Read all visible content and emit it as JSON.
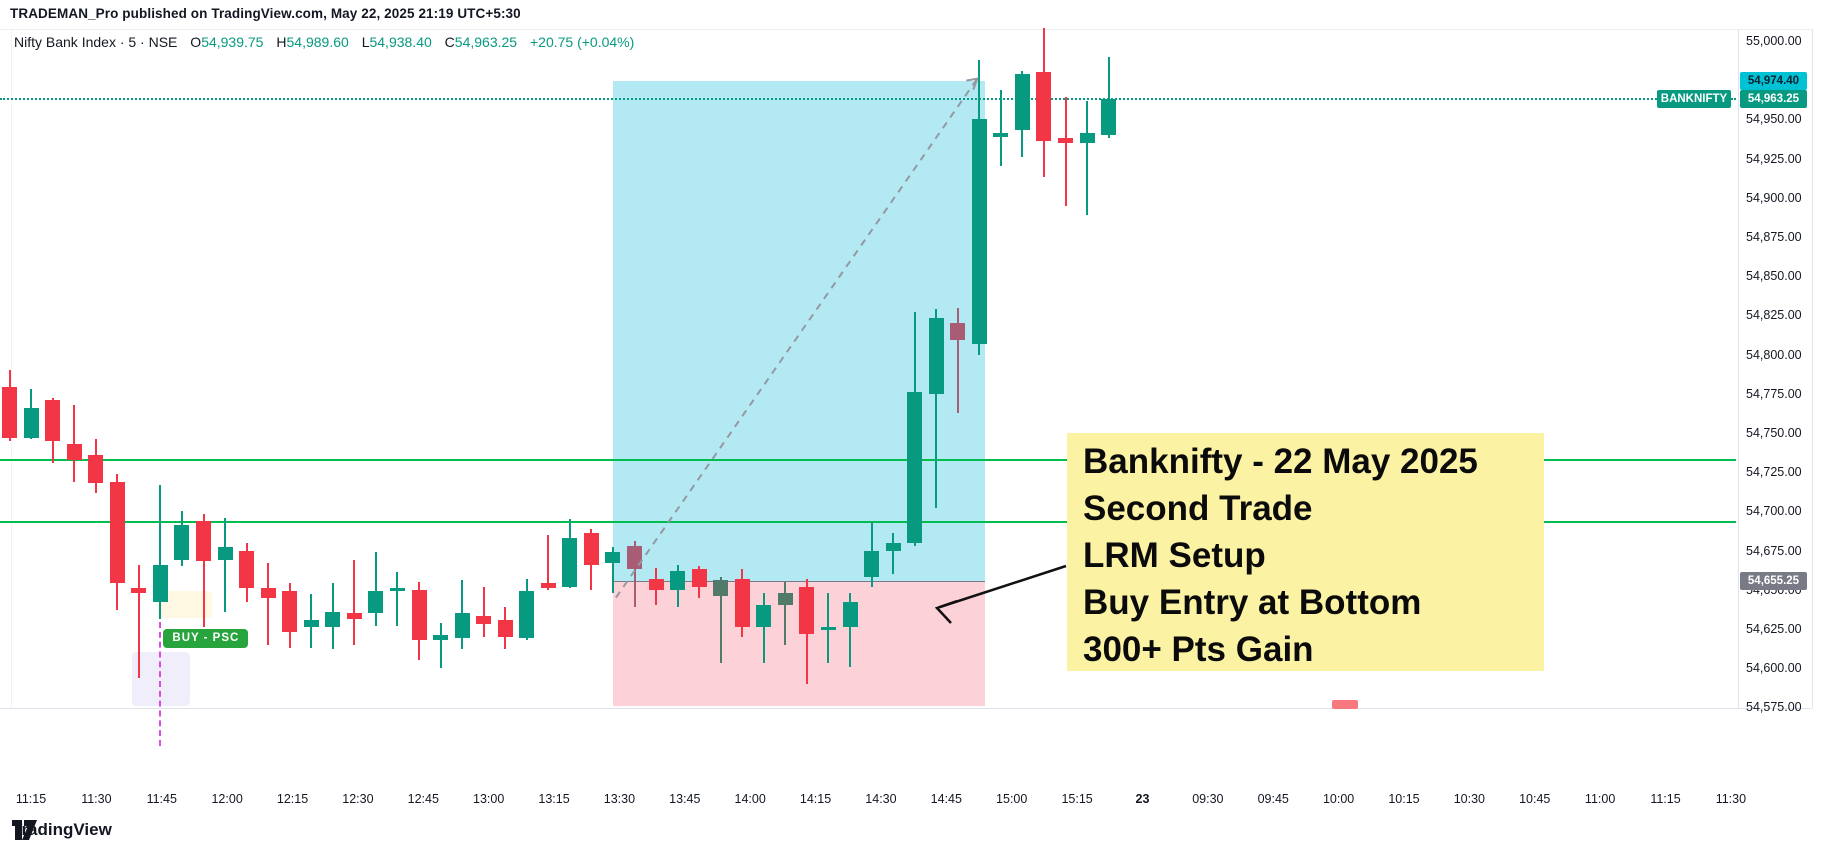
{
  "header": {
    "byline": "TRADEMAN_Pro published on TradingView.com, May 22, 2025 21:19 UTC+5:30"
  },
  "legend": {
    "symbol_line": "Nifty Bank Index · 5 · NSE",
    "o_label": "O",
    "o_value": "54,939.75",
    "h_label": "H",
    "h_value": "54,989.60",
    "l_label": "L",
    "l_value": "54,938.40",
    "c_label": "C",
    "c_value": "54,963.25",
    "change": "+20.75 (+0.04%)"
  },
  "note": {
    "lines": [
      "Banknifty - 22 May 2025",
      "Second Trade",
      "LRM Setup",
      "Buy Entry at Bottom",
      "300+ Pts Gain"
    ],
    "bg_color": "#fbf3a3"
  },
  "signal": {
    "buy_label": "BUY - PSC",
    "badge_color": "#27a43c"
  },
  "price_scale": {
    "symbol_tag": "BANKNIFTY",
    "last_price_tag": "54,963.25",
    "target_tag": "54,974.40",
    "entry_tag": "54,655.25",
    "last_color": "#089981",
    "target_color": "#00c2d4",
    "entry_color": "#787b86"
  },
  "footer": {
    "brand": "TradingView"
  },
  "chart_data": {
    "type": "candlestick",
    "title": "Nifty Bank Index · 5 · NSE",
    "interval_minutes": 5,
    "last_bar": {
      "open": 54939.75,
      "high": 54989.6,
      "low": 54938.4,
      "close": 54963.25,
      "change": 20.75,
      "change_pct": 0.04
    },
    "y_axis": {
      "min": 54575,
      "max": 55000,
      "tick_step": 25,
      "grid": false
    },
    "x_labels": [
      "11:15",
      "11:30",
      "11:45",
      "12:00",
      "12:15",
      "12:30",
      "12:45",
      "13:00",
      "13:15",
      "13:30",
      "13:45",
      "14:00",
      "14:15",
      "14:30",
      "14:45",
      "15:00",
      "15:15",
      "23",
      "09:30",
      "09:45",
      "10:00",
      "10:15",
      "10:30",
      "10:45",
      "11:00",
      "11:15",
      "11:30"
    ],
    "levels": {
      "current_price": 54963.25,
      "target": 54974.4,
      "entry": 54655.25,
      "horizontal_lines": [
        54733,
        54693
      ],
      "line_color": "#00bd4e"
    },
    "zones": {
      "profit": {
        "price_from": 54655.25,
        "price_to": 54974.4,
        "time_from": "13:30",
        "time_to": "14:55",
        "color": "rgba(0,183,212,0.30)"
      },
      "risk": {
        "price_from": 54576,
        "price_to": 54655.25,
        "time_from": "13:30",
        "time_to": "14:55",
        "color": "rgba(244,67,92,0.24)"
      }
    },
    "trendline": {
      "from": {
        "time": "13:30",
        "price": 54645
      },
      "to": {
        "time": "14:55",
        "price": 54976
      },
      "style": "dashed",
      "color": "#9598a1"
    },
    "buy_signal": {
      "time": "11:45",
      "price": 54631
    },
    "candles": [
      [
        "11:05",
        54785,
        54792,
        54750,
        54752,
        "r"
      ],
      [
        "11:10",
        54779,
        54790,
        54745,
        54747,
        "r"
      ],
      [
        "11:15",
        54747,
        54778,
        54746,
        54766,
        "g"
      ],
      [
        "11:20",
        54771,
        54772,
        54731,
        54745,
        "r"
      ],
      [
        "11:25",
        54743,
        54768,
        54719,
        54733,
        "r"
      ],
      [
        "11:30",
        54736,
        54746,
        54712,
        54718,
        "r"
      ],
      [
        "11:35",
        54719,
        54724,
        54637,
        54654,
        "r"
      ],
      [
        "11:40",
        54651,
        54666,
        54594,
        54648,
        "r"
      ],
      [
        "11:45",
        54642,
        54717,
        54631,
        54666,
        "g"
      ],
      [
        "11:50",
        54669,
        54700,
        54665,
        54691,
        "g"
      ],
      [
        "11:55",
        54694,
        54698,
        54626,
        54668,
        "r"
      ],
      [
        "12:00",
        54669,
        54696,
        54636,
        54677,
        "g"
      ],
      [
        "12:05",
        54675,
        54680,
        54642,
        54651,
        "r"
      ],
      [
        "12:10",
        54651,
        54667,
        54615,
        54645,
        "r"
      ],
      [
        "12:15",
        54649,
        54654,
        54613,
        54623,
        "r"
      ],
      [
        "12:20",
        54626,
        54647,
        54613,
        54631,
        "g"
      ],
      [
        "12:25",
        54626,
        54654,
        54612,
        54636,
        "g"
      ],
      [
        "12:30",
        54635,
        54669,
        54615,
        54631,
        "r"
      ],
      [
        "12:35",
        54635,
        54674,
        54627,
        54649,
        "g"
      ],
      [
        "12:40",
        54650,
        54661,
        54627,
        54651,
        "g"
      ],
      [
        "12:45",
        54650,
        54655,
        54605,
        54618,
        "r"
      ],
      [
        "12:50",
        54618,
        54629,
        54600,
        54621,
        "g"
      ],
      [
        "12:55",
        54619,
        54656,
        54612,
        54635,
        "g"
      ],
      [
        "13:00",
        54633,
        54652,
        54620,
        54628,
        "r"
      ],
      [
        "13:05",
        54631,
        54639,
        54612,
        54620,
        "r"
      ],
      [
        "13:10",
        54619,
        54657,
        54618,
        54649,
        "g"
      ],
      [
        "13:15",
        54654,
        54685,
        54650,
        54651,
        "r"
      ],
      [
        "13:20",
        54652,
        54695,
        54651,
        54683,
        "g"
      ],
      [
        "13:25",
        54686,
        54689,
        54650,
        54666,
        "r"
      ],
      [
        "13:30",
        54667,
        54677,
        54648,
        54674,
        "g"
      ],
      [
        "13:35",
        54678,
        54681,
        54639,
        54663,
        "m"
      ],
      [
        "13:40",
        54657,
        54664,
        54640,
        54650,
        "r"
      ],
      [
        "13:45",
        54650,
        54666,
        54639,
        54662,
        "g"
      ],
      [
        "13:50",
        54663,
        54665,
        54645,
        54652,
        "r"
      ],
      [
        "13:55",
        54656,
        54658,
        54603,
        54646,
        "s"
      ],
      [
        "14:00",
        54657,
        54663,
        54620,
        54626,
        "r"
      ],
      [
        "14:05",
        54626,
        54648,
        54603,
        54640,
        "g"
      ],
      [
        "14:10",
        54648,
        54655,
        54615,
        54640,
        "s"
      ],
      [
        "14:15",
        54652,
        54657,
        54590,
        54622,
        "r"
      ],
      [
        "14:20",
        54624,
        54648,
        54603,
        54626,
        "g"
      ],
      [
        "14:25",
        54626,
        54648,
        54601,
        54642,
        "g"
      ],
      [
        "14:30",
        54658,
        54693,
        54652,
        54675,
        "g"
      ],
      [
        "14:35",
        54675,
        54686,
        54660,
        54680,
        "g"
      ],
      [
        "14:40",
        54680,
        54827,
        54678,
        54776,
        "g"
      ],
      [
        "14:45",
        54775,
        54829,
        54702,
        54823,
        "g"
      ],
      [
        "14:50",
        54820,
        54830,
        54763,
        54809,
        "m"
      ],
      [
        "14:55",
        54807,
        54988,
        54800,
        54950,
        "g"
      ],
      [
        "15:00",
        54939,
        54969,
        54920,
        54941,
        "g"
      ],
      [
        "15:05",
        54943,
        54981,
        54926,
        54979,
        "g"
      ],
      [
        "15:10",
        54980,
        55008,
        54913,
        54936,
        "r"
      ],
      [
        "15:15",
        54938,
        54964,
        54895,
        54935,
        "r"
      ],
      [
        "15:20",
        54935,
        54962,
        54889,
        54941,
        "g"
      ],
      [
        "15:25",
        54939.75,
        54989.6,
        54938.4,
        54963.25,
        "g"
      ]
    ],
    "colors": {
      "up": "#089981",
      "down": "#f23645",
      "signal_bear": "#a85d74",
      "signal_neutral": "#527a6b"
    }
  }
}
